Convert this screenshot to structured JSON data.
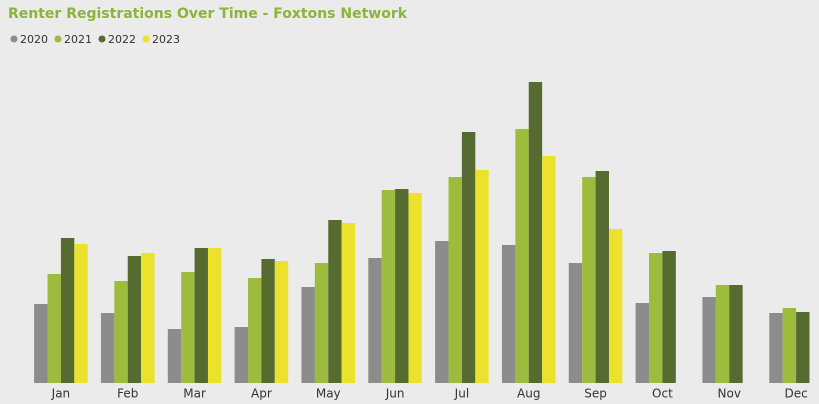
{
  "chart_data": {
    "type": "bar",
    "title": "Renter Registrations Over Time - Foxtons Network",
    "categories": [
      "Jan",
      "Feb",
      "Mar",
      "Apr",
      "May",
      "Jun",
      "Jul",
      "Aug",
      "Sep",
      "Oct",
      "Nov",
      "Dec"
    ],
    "series": [
      {
        "name": "2020",
        "color": "#8c8c8c",
        "values": [
          79,
          70,
          54,
          56,
          96,
          125,
          142,
          138,
          120,
          80,
          86,
          70
        ]
      },
      {
        "name": "2021",
        "color": "#9dbb3c",
        "values": [
          109,
          102,
          111,
          105,
          120,
          193,
          206,
          254,
          206,
          130,
          98,
          75
        ]
      },
      {
        "name": "2022",
        "color": "#566b30",
        "values": [
          145,
          127,
          135,
          124,
          163,
          194,
          251,
          301,
          212,
          132,
          98,
          71
        ]
      },
      {
        "name": "2023",
        "color": "#ece22e",
        "values": [
          139,
          130,
          135,
          122,
          160,
          190,
          213,
          227,
          154,
          null,
          null,
          null
        ]
      }
    ],
    "legend": "top-left"
  }
}
